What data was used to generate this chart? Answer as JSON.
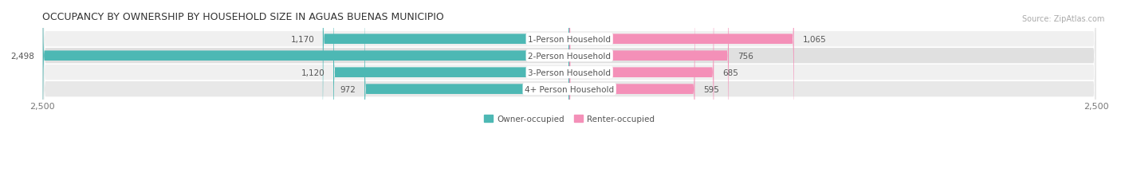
{
  "title": "OCCUPANCY BY OWNERSHIP BY HOUSEHOLD SIZE IN AGUAS BUENAS MUNICIPIO",
  "source": "Source: ZipAtlas.com",
  "categories": [
    "1-Person Household",
    "2-Person Household",
    "3-Person Household",
    "4+ Person Household"
  ],
  "owner_values": [
    1170,
    2498,
    1120,
    972
  ],
  "renter_values": [
    1065,
    756,
    685,
    595
  ],
  "owner_color": "#4db8b4",
  "renter_color": "#f490b8",
  "label_bg_color": "#ffffff",
  "row_bg_colors": [
    "#f0f0f0",
    "#e0e0e0",
    "#f0f0f0",
    "#e8e8e8"
  ],
  "axis_limit": 2500,
  "legend_owner": "Owner-occupied",
  "legend_renter": "Renter-occupied",
  "title_fontsize": 9,
  "label_fontsize": 7.5,
  "value_fontsize": 7.5,
  "axis_fontsize": 8,
  "background_color": "#ffffff"
}
